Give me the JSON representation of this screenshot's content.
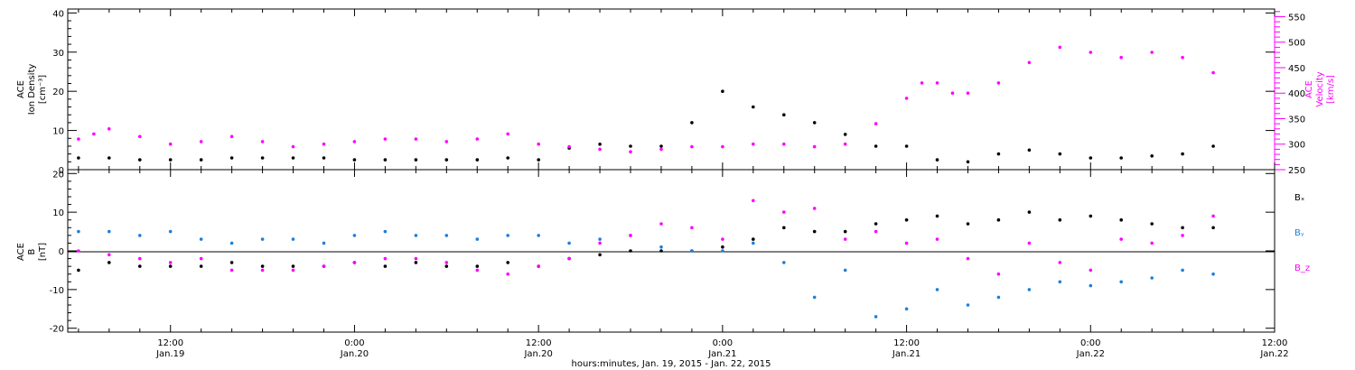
{
  "chart_data": [
    {
      "type": "scatter",
      "x_unit": "hours since 2015-01-19 00:00 UTC",
      "xlim": [
        5.3,
        84
      ],
      "ylabel_left": [
        "ACE",
        "Ion Density",
        "[cm⁻³]"
      ],
      "ylabel_right": [
        "ACE",
        "Velocity",
        "[km/s]"
      ],
      "ylim_left": [
        0,
        41
      ],
      "ylim_right": [
        250,
        565
      ],
      "yticks_left": [
        0,
        10,
        20,
        30,
        40
      ],
      "yticks_right": [
        250,
        300,
        350,
        400,
        450,
        500,
        550
      ],
      "colors": {
        "density": "#000000",
        "velocity": "#ff00ff"
      },
      "series": [
        {
          "key": "density",
          "axis": "left",
          "x": [
            6,
            8,
            10,
            12,
            14,
            16,
            18,
            20,
            22,
            24,
            26,
            28,
            30,
            32,
            34,
            36,
            38,
            40,
            42,
            44,
            46,
            48,
            50,
            52,
            54,
            56,
            58,
            60,
            62,
            64,
            66,
            68,
            70,
            72,
            74,
            76,
            78,
            80
          ],
          "y": [
            3,
            3,
            2.5,
            2.5,
            2.5,
            3,
            3,
            3,
            3,
            2.5,
            2.5,
            2.5,
            2.5,
            2.5,
            3,
            2.5,
            5.5,
            6.5,
            6,
            6,
            12,
            20,
            16,
            14,
            12,
            9,
            6,
            6,
            2.5,
            2,
            4,
            5,
            4,
            3,
            3,
            3.5,
            4,
            6
          ]
        },
        {
          "key": "velocity",
          "axis": "right",
          "x": [
            6,
            7,
            8,
            10,
            12,
            14,
            16,
            18,
            20,
            22,
            24,
            26,
            28,
            30,
            32,
            34,
            36,
            38,
            40,
            42,
            44,
            46,
            48,
            50,
            52,
            54,
            56,
            58,
            60,
            61,
            62,
            63,
            64,
            66,
            68,
            70,
            72,
            74,
            76,
            78,
            80
          ],
          "y": [
            310,
            320,
            330,
            315,
            300,
            305,
            315,
            305,
            295,
            300,
            305,
            310,
            310,
            305,
            310,
            320,
            300,
            295,
            290,
            285,
            290,
            295,
            295,
            300,
            300,
            295,
            300,
            340,
            390,
            420,
            420,
            400,
            400,
            420,
            460,
            490,
            480,
            470,
            480,
            470,
            440
          ]
        }
      ]
    },
    {
      "type": "scatter",
      "x_unit": "hours since 2015-01-19 00:00 UTC",
      "xlim": [
        5.3,
        84
      ],
      "ylabel_left": [
        "ACE",
        "B",
        "[nT]"
      ],
      "ylim": [
        -21,
        21
      ],
      "yticks": [
        -20,
        -10,
        0,
        10,
        20
      ],
      "zero_line": true,
      "legend": [
        "Bₓ",
        "Bᵧ",
        "B_z"
      ],
      "legend_placement": "right",
      "colors": {
        "bx": "#000000",
        "by": "#1e7fd9",
        "bz": "#ff00ff"
      },
      "series": [
        {
          "key": "bx",
          "x": [
            6,
            8,
            10,
            12,
            14,
            16,
            18,
            20,
            22,
            24,
            26,
            28,
            30,
            32,
            34,
            36,
            38,
            40,
            42,
            44,
            46,
            48,
            50,
            52,
            54,
            56,
            58,
            60,
            62,
            64,
            66,
            68,
            70,
            72,
            74,
            76,
            78,
            80
          ],
          "y": [
            -5,
            -3,
            -4,
            -4,
            -4,
            -3,
            -4,
            -4,
            -4,
            -3,
            -4,
            -3,
            -4,
            -4,
            -3,
            -4,
            -2,
            -1,
            0,
            0,
            0,
            1,
            3,
            6,
            5,
            5,
            7,
            8,
            9,
            7,
            8,
            10,
            8,
            9,
            8,
            7,
            6,
            6
          ]
        },
        {
          "key": "by",
          "x": [
            6,
            8,
            10,
            12,
            14,
            16,
            18,
            20,
            22,
            24,
            26,
            28,
            30,
            32,
            34,
            36,
            38,
            40,
            42,
            44,
            46,
            48,
            50,
            52,
            54,
            56,
            58,
            60,
            62,
            64,
            66,
            68,
            70,
            72,
            74,
            76,
            78,
            80
          ],
          "y": [
            5,
            5,
            4,
            5,
            3,
            2,
            3,
            3,
            2,
            4,
            5,
            4,
            4,
            3,
            4,
            4,
            2,
            3,
            4,
            1,
            0,
            0,
            2,
            -3,
            -12,
            -5,
            -17,
            -15,
            -10,
            -14,
            -12,
            -10,
            -8,
            -9,
            -8,
            -7,
            -5,
            -6
          ]
        },
        {
          "key": "bz",
          "x": [
            6,
            8,
            10,
            12,
            14,
            16,
            18,
            20,
            22,
            24,
            26,
            28,
            30,
            32,
            34,
            36,
            38,
            40,
            42,
            44,
            46,
            48,
            50,
            52,
            54,
            56,
            58,
            60,
            62,
            64,
            66,
            68,
            70,
            72,
            74,
            76,
            78,
            80
          ],
          "y": [
            0,
            -1,
            -2,
            -3,
            -2,
            -5,
            -5,
            -5,
            -4,
            -3,
            -2,
            -2,
            -3,
            -5,
            -6,
            -4,
            -2,
            2,
            4,
            7,
            6,
            3,
            13,
            10,
            11,
            3,
            5,
            2,
            3,
            -2,
            -6,
            2,
            -3,
            -5,
            3,
            2,
            4,
            9
          ]
        }
      ]
    }
  ],
  "x_axis": {
    "ticks": [
      {
        "hours": 12,
        "time": "12:00",
        "date": "Jan.19"
      },
      {
        "hours": 24,
        "time": "0:00",
        "date": "Jan.20"
      },
      {
        "hours": 36,
        "time": "12:00",
        "date": "Jan.20"
      },
      {
        "hours": 48,
        "time": "0:00",
        "date": "Jan.21"
      },
      {
        "hours": 60,
        "time": "12:00",
        "date": "Jan.21"
      },
      {
        "hours": 72,
        "time": "0:00",
        "date": "Jan.22"
      },
      {
        "hours": 84,
        "time": "12:00",
        "date": "Jan.22"
      }
    ],
    "label": "hours:minutes, Jan. 19, 2015 - Jan. 22, 2015"
  }
}
